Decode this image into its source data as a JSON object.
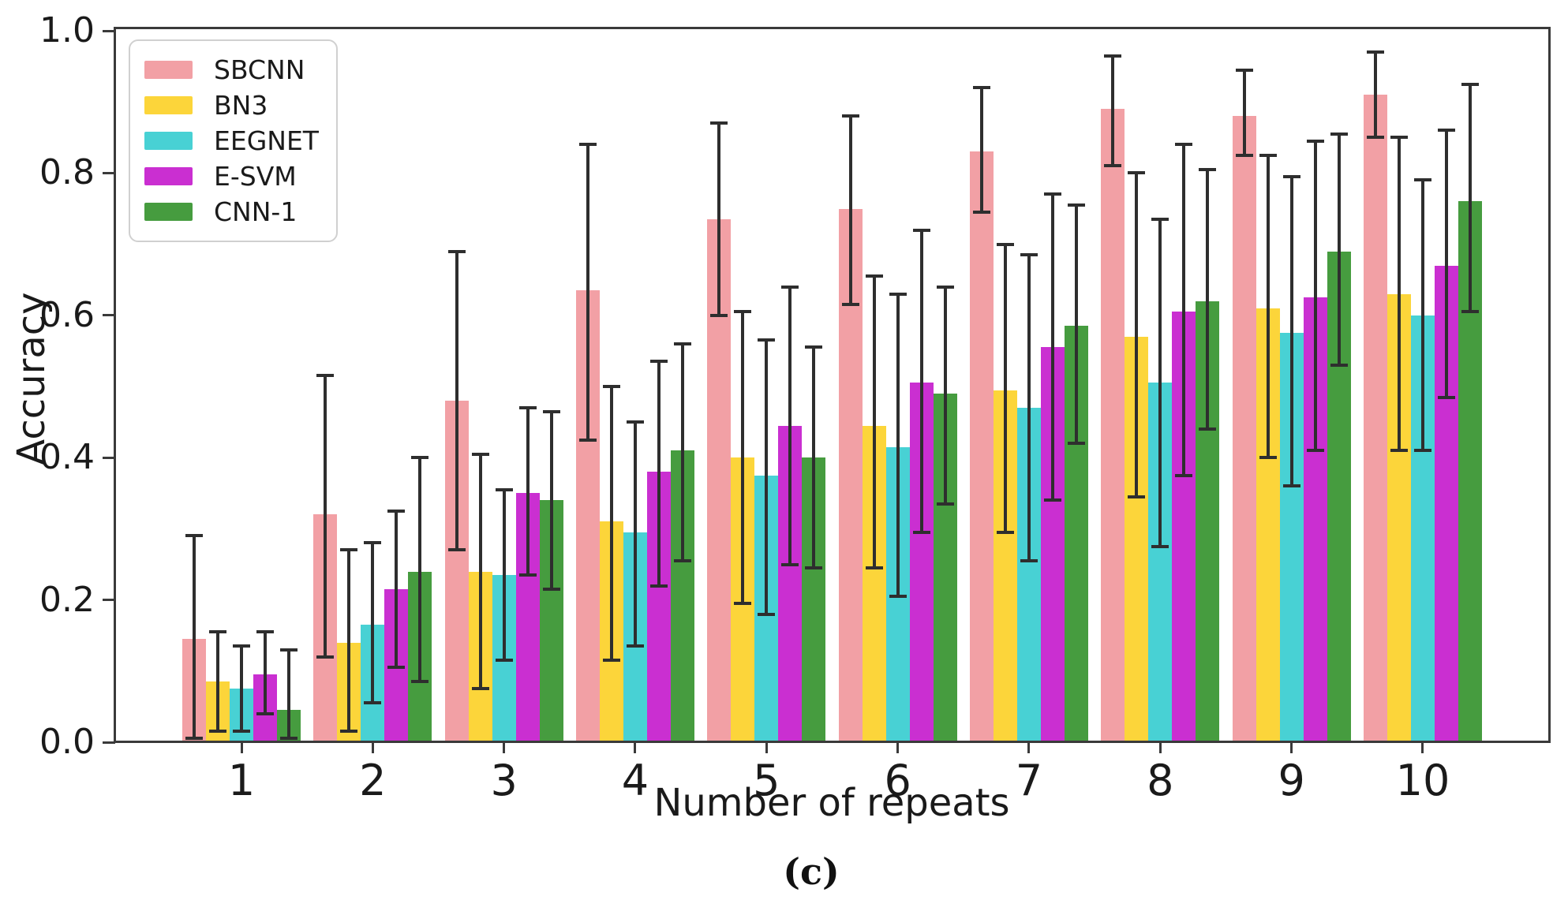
{
  "figure": {
    "caption": "(c)"
  },
  "axes": {
    "y_ticks": [
      "0.0",
      "0.2",
      "0.4",
      "0.6",
      "0.8",
      "1.0"
    ],
    "y_tick_values": [
      0.0,
      0.2,
      0.4,
      0.6,
      0.8,
      1.0
    ],
    "x_ticks": [
      "1",
      "2",
      "3",
      "4",
      "5",
      "6",
      "7",
      "8",
      "9",
      "10"
    ]
  },
  "style_colors": {
    "error_bar": "#2e2e2e",
    "spine": "#3a3a3a",
    "legend_border": "#d0d0d0"
  },
  "chart_data": {
    "type": "bar",
    "title": "",
    "xlabel": "Number of repeats",
    "ylabel": "Accuracy",
    "ylim": [
      0.0,
      1.0
    ],
    "grid": false,
    "legend_position": "upper left",
    "error_bars": true,
    "categories": [
      "1",
      "2",
      "3",
      "4",
      "5",
      "6",
      "7",
      "8",
      "9",
      "10"
    ],
    "series": [
      {
        "name": "SBCNN",
        "color": "#f2a0a5",
        "values": [
          0.145,
          0.32,
          0.48,
          0.635,
          0.735,
          0.75,
          0.83,
          0.89,
          0.88,
          0.91
        ],
        "err_low": [
          0.005,
          0.12,
          0.27,
          0.425,
          0.6,
          0.615,
          0.745,
          0.81,
          0.825,
          0.85
        ],
        "err_high": [
          0.29,
          0.515,
          0.69,
          0.84,
          0.87,
          0.88,
          0.92,
          0.965,
          0.945,
          0.97
        ]
      },
      {
        "name": "BN3",
        "color": "#fcd53a",
        "values": [
          0.085,
          0.14,
          0.24,
          0.31,
          0.4,
          0.445,
          0.495,
          0.57,
          0.61,
          0.63
        ],
        "err_low": [
          0.015,
          0.015,
          0.075,
          0.115,
          0.195,
          0.245,
          0.295,
          0.345,
          0.4,
          0.41
        ],
        "err_high": [
          0.155,
          0.27,
          0.405,
          0.5,
          0.605,
          0.655,
          0.7,
          0.8,
          0.825,
          0.85
        ]
      },
      {
        "name": "EEGNET",
        "color": "#48d1d4",
        "values": [
          0.075,
          0.165,
          0.235,
          0.295,
          0.375,
          0.415,
          0.47,
          0.505,
          0.575,
          0.6
        ],
        "err_low": [
          0.015,
          0.055,
          0.115,
          0.135,
          0.18,
          0.205,
          0.255,
          0.275,
          0.36,
          0.41
        ],
        "err_high": [
          0.135,
          0.28,
          0.355,
          0.45,
          0.565,
          0.63,
          0.685,
          0.735,
          0.795,
          0.79
        ]
      },
      {
        "name": "E-SVM",
        "color": "#ca2fd1",
        "values": [
          0.095,
          0.215,
          0.35,
          0.38,
          0.445,
          0.505,
          0.555,
          0.605,
          0.625,
          0.67
        ],
        "err_low": [
          0.04,
          0.105,
          0.235,
          0.22,
          0.25,
          0.295,
          0.34,
          0.375,
          0.41,
          0.485
        ],
        "err_high": [
          0.155,
          0.325,
          0.47,
          0.535,
          0.64,
          0.72,
          0.77,
          0.84,
          0.845,
          0.86
        ]
      },
      {
        "name": "CNN-1",
        "color": "#469c3f",
        "values": [
          0.045,
          0.24,
          0.34,
          0.41,
          0.4,
          0.49,
          0.585,
          0.62,
          0.69,
          0.76
        ],
        "err_low": [
          0.005,
          0.085,
          0.215,
          0.255,
          0.245,
          0.335,
          0.42,
          0.44,
          0.53,
          0.605
        ],
        "err_high": [
          0.13,
          0.4,
          0.465,
          0.56,
          0.555,
          0.64,
          0.755,
          0.805,
          0.855,
          0.925
        ]
      }
    ]
  }
}
